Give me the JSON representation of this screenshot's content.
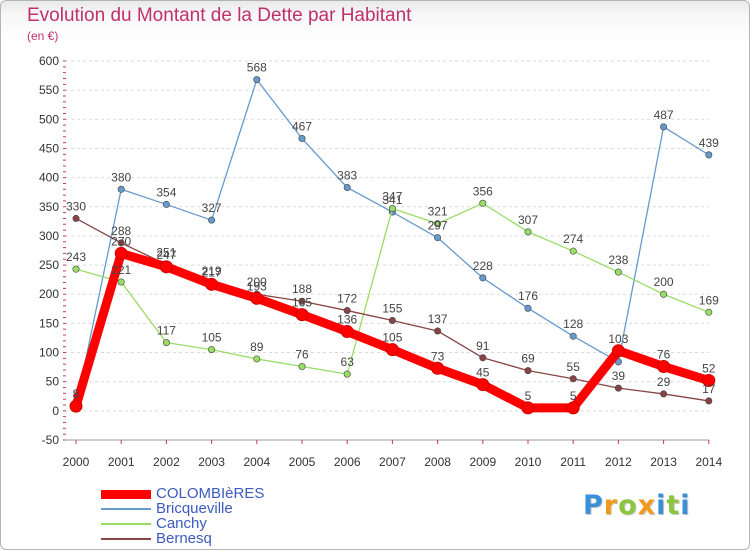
{
  "title": "Evolution du Montant de la Dette par Habitant",
  "subtitle": "(en €)",
  "colors": {
    "title": "#c0306a",
    "grid": "#d9d9d9",
    "axis_text": "#333333",
    "value_label": "#444444",
    "legend_text": "#3b5bbf"
  },
  "chart_data": {
    "type": "line",
    "x": [
      "2000",
      "2001",
      "2002",
      "2003",
      "2004",
      "2005",
      "2006",
      "2007",
      "2008",
      "2009",
      "2010",
      "2011",
      "2012",
      "2013",
      "2014"
    ],
    "ylim": [
      -50,
      600
    ],
    "yticks": [
      -50,
      0,
      50,
      100,
      150,
      200,
      250,
      300,
      350,
      400,
      450,
      500,
      550,
      600
    ],
    "grid": "horizontal dashed",
    "legend_position": "bottom-left",
    "series": [
      {
        "name": "COLOMBIèRES",
        "color": "#ff0000",
        "values": [
          8,
          270,
          247,
          217,
          193,
          165,
          136,
          105,
          73,
          45,
          5,
          5,
          103,
          76,
          52
        ],
        "labels": [
          "8",
          "270",
          "247",
          "217",
          "193",
          "165",
          "136",
          "105",
          "73",
          "45",
          "5",
          "5",
          "103",
          "76",
          "52"
        ]
      },
      {
        "name": "Bricqueville",
        "color": "#6699cc",
        "values": [
          8,
          380,
          354,
          327,
          568,
          467,
          383,
          341,
          297,
          228,
          176,
          128,
          84,
          487,
          439
        ],
        "labels": [
          "8",
          "380",
          "354",
          "327",
          "568",
          "467",
          "383",
          "341",
          "297",
          "228",
          "176",
          "128",
          "",
          "487",
          "439"
        ]
      },
      {
        "name": "Canchy",
        "color": "#99dd66",
        "values": [
          243,
          221,
          117,
          105,
          89,
          76,
          63,
          347,
          321,
          356,
          307,
          274,
          238,
          200,
          169
        ],
        "labels": [
          "243",
          "221",
          "117",
          "105",
          "89",
          "76",
          "63",
          "347",
          "321",
          "356",
          "307",
          "274",
          "238",
          "200",
          "169"
        ]
      },
      {
        "name": "Bernesq",
        "color": "#884444",
        "values": [
          330,
          288,
          251,
          219,
          200,
          188,
          172,
          155,
          137,
          91,
          69,
          55,
          39,
          29,
          17
        ],
        "labels": [
          "330",
          "288",
          "251",
          "219",
          "200",
          "188",
          "172",
          "155",
          "137",
          "91",
          "69",
          "55",
          "39",
          "29",
          "17"
        ]
      }
    ]
  },
  "logo": {
    "letters": [
      "P",
      "r",
      "o",
      "x",
      "i",
      "t",
      "i"
    ],
    "colors": [
      "#3a8fd8",
      "#f39a1c",
      "#8cc63e",
      "#f39a1c",
      "#3a8fd8",
      "#8cc63e",
      "#3a8fd8"
    ]
  }
}
